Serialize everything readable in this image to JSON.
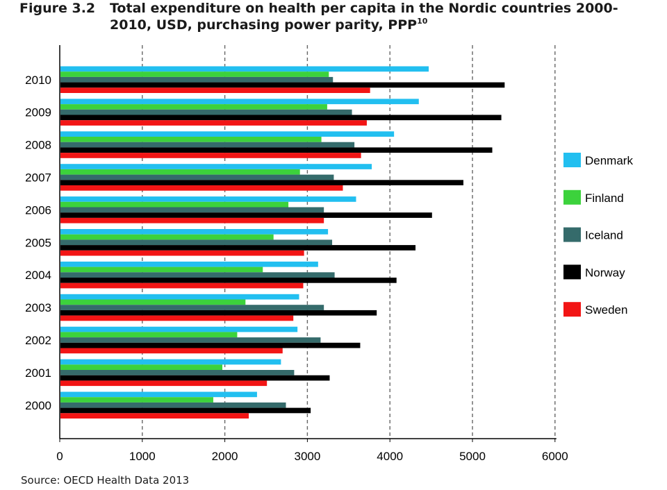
{
  "figure": {
    "label": "Figure 3.2",
    "title": "Total expenditure on health per capita in the Nordic countries 2000-2010, USD, purchasing power parity, PPP",
    "title_superscript": "10",
    "source": "Source: OECD Health Data 2013"
  },
  "chart_data": {
    "type": "bar",
    "orientation": "horizontal",
    "categories": [
      "2010",
      "2009",
      "2008",
      "2007",
      "2006",
      "2005",
      "2004",
      "2003",
      "2002",
      "2001",
      "2000"
    ],
    "series": [
      {
        "name": "Denmark",
        "color": "#22bff0",
        "values": [
          4470,
          4350,
          4050,
          3780,
          3590,
          3250,
          3130,
          2900,
          2880,
          2680,
          2390
        ]
      },
      {
        "name": "Finland",
        "color": "#3cd23c",
        "values": [
          3260,
          3240,
          3170,
          2910,
          2770,
          2590,
          2460,
          2250,
          2150,
          1970,
          1860
        ]
      },
      {
        "name": "Iceland",
        "color": "#356b6b",
        "values": [
          3310,
          3540,
          3570,
          3320,
          3200,
          3300,
          3330,
          3200,
          3160,
          2840,
          2740
        ]
      },
      {
        "name": "Norway",
        "color": "#000000",
        "values": [
          5390,
          5350,
          5240,
          4890,
          4510,
          4310,
          4080,
          3840,
          3640,
          3270,
          3040
        ]
      },
      {
        "name": "Sweden",
        "color": "#f21515",
        "values": [
          3760,
          3720,
          3650,
          3430,
          3200,
          2960,
          2950,
          2830,
          2700,
          2510,
          2290
        ]
      }
    ],
    "x_ticks": [
      "0",
      "1000",
      "2000",
      "3000",
      "4000",
      "5000",
      "6000"
    ],
    "xlim": [
      0,
      6000
    ],
    "grid": "vertical dashed",
    "legend_position": "right"
  }
}
